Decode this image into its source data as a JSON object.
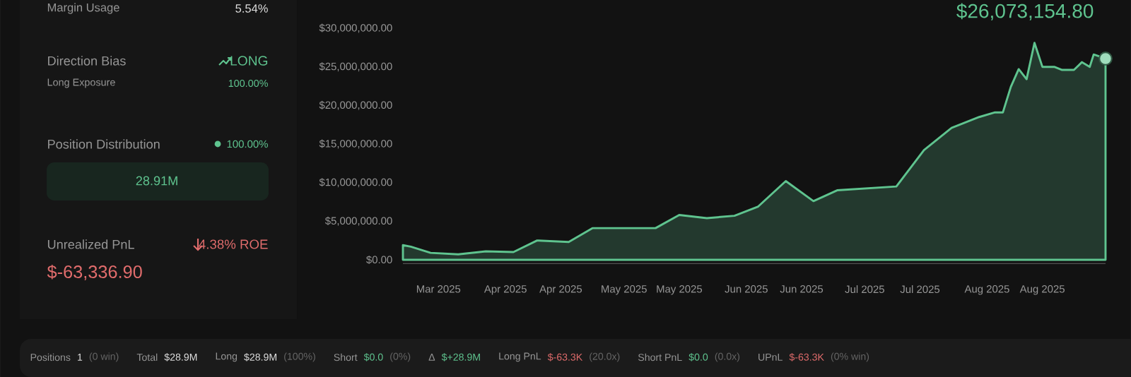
{
  "chart_data": [
    {
      "type": "other",
      "annotations": [
        "Margin Usage",
        "5.54%",
        "Direction Bias",
        "LONG",
        "Long Exposure",
        "100.00%",
        "Position Distribution",
        "100.00%",
        "28.91M",
        "Unrealized PnL",
        "4.38% ROE",
        "$-63,336.90",
        "Positions",
        "1",
        "(0 win)",
        "Total",
        "$28.9M",
        "Long",
        "$28.9M",
        "(100%)",
        "Short",
        "$0.0",
        "(0%)",
        "Δ",
        "$+28.9M",
        "Long PnL",
        "$-63.3K",
        "(20.0x)",
        "Short PnL",
        "$0.0",
        "(0.0x)",
        "UPnL",
        "$-63.3K",
        "(0% win)"
      ]
    },
    {
      "type": "area",
      "color": "#5fc48f",
      "x": [
        "2025-03-06",
        "2025-03-08",
        "2025-03-13",
        "2025-03-20",
        "2025-03-27",
        "2025-04-03",
        "2025-04-09",
        "2025-04-17",
        "2025-04-23",
        "2025-05-05",
        "2025-05-09",
        "2025-05-15",
        "2025-05-22",
        "2025-05-29",
        "2025-06-04",
        "2025-06-11",
        "2025-06-18",
        "2025-06-24",
        "2025-07-09",
        "2025-07-16",
        "2025-07-23",
        "2025-07-30",
        "2025-08-03",
        "2025-08-05",
        "2025-08-07",
        "2025-08-09",
        "2025-08-11",
        "2025-08-13",
        "2025-08-15",
        "2025-08-18",
        "2025-08-20",
        "2025-08-23",
        "2025-08-25",
        "2025-08-27",
        "2025-08-28",
        "2025-08-31"
      ],
      "values": [
        1900000,
        1700000,
        900000,
        700000,
        1100000,
        1000000,
        2500000,
        2300000,
        4100000,
        4100000,
        4100000,
        5800000,
        5400000,
        5700000,
        6900000,
        10200000,
        7600000,
        9000000,
        9500000,
        14200000,
        17100000,
        18500000,
        19100000,
        19100000,
        22400000,
        24700000,
        23400000,
        28100000,
        25000000,
        25000000,
        24600000,
        24600000,
        25600000,
        25000000,
        26600000,
        26073154.8
      ],
      "xlim": [
        "2025-03-06",
        "2025-08-31"
      ],
      "xticks": [
        {
          "value": "2025-03-15",
          "label": "Mar 2025"
        },
        {
          "value": "2025-04-01",
          "label": "Apr 2025"
        },
        {
          "value": "2025-04-15",
          "label": "Apr 2025"
        },
        {
          "value": "2025-05-01",
          "label": "May 2025"
        },
        {
          "value": "2025-05-15",
          "label": "May 2025"
        },
        {
          "value": "2025-06-01",
          "label": "Jun 2025"
        },
        {
          "value": "2025-06-15",
          "label": "Jun 2025"
        },
        {
          "value": "2025-07-01",
          "label": "Jul 2025"
        },
        {
          "value": "2025-07-15",
          "label": "Jul 2025"
        },
        {
          "value": "2025-08-01",
          "label": "Aug 2025"
        },
        {
          "value": "2025-08-15",
          "label": "Aug 2025"
        }
      ],
      "ylim": [
        0,
        30000000
      ],
      "yticks": [
        {
          "value": 0,
          "label": "$0.00"
        },
        {
          "value": 5000000,
          "label": "$5,000,000.00"
        },
        {
          "value": 10000000,
          "label": "$10,000,000.00"
        },
        {
          "value": 15000000,
          "label": "$15,000,000.00"
        },
        {
          "value": 20000000,
          "label": "$20,000,000.00"
        },
        {
          "value": 25000000,
          "label": "$25,000,000.00"
        },
        {
          "value": 30000000,
          "label": "$30,000,000.00"
        }
      ],
      "marker": "none",
      "annotations": [
        {
          "text": "$26,073,154.80",
          "x": "2025-08-31",
          "y": 26073154.8
        }
      ]
    }
  ]
}
